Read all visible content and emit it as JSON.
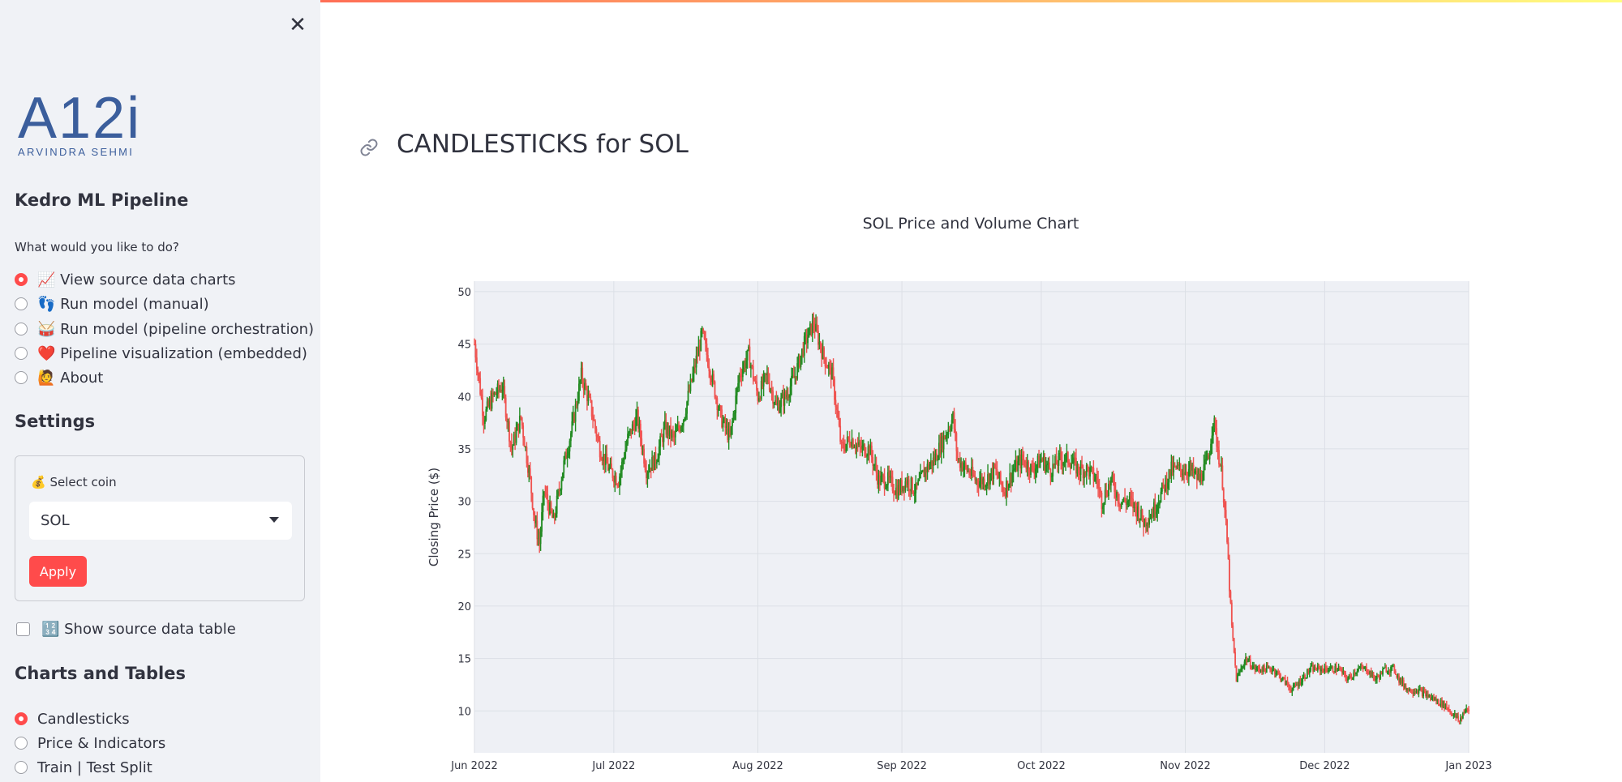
{
  "sidebar": {
    "close_icon_glyph": "✕",
    "logo": {
      "mark": "A12i",
      "subtitle": "ARVINDRA SEHMI",
      "color": "#3b5e9c"
    },
    "app_title": "Kedro ML Pipeline",
    "question": "What would you like to do?",
    "actions": [
      {
        "label": "📈 View source data charts",
        "selected": true
      },
      {
        "label": "👣 Run model (manual)",
        "selected": false
      },
      {
        "label": "🥁 Run model (pipeline orchestration)",
        "selected": false
      },
      {
        "label": "❤️ Pipeline visualization (embedded)",
        "selected": false
      },
      {
        "label": "🙋 About",
        "selected": false
      }
    ],
    "settings_title": "Settings",
    "coin_label": "💰 Select coin",
    "coin_value": "SOL",
    "apply_label": "Apply",
    "show_table_label": "🔢 Show source data table",
    "charts_title": "Charts and Tables",
    "chart_options": [
      {
        "label": "Candlesticks",
        "selected": true
      },
      {
        "label": "Price & Indicators",
        "selected": false
      },
      {
        "label": "Train | Test Split",
        "selected": false
      }
    ]
  },
  "main": {
    "title": "CANDLESTICKS for SOL"
  },
  "colors": {
    "accent": "#ff4b4b",
    "up": "#228b22",
    "down": "#ef5350",
    "plot_bg": "#eef0f5"
  },
  "chart_data": {
    "type": "candlestick",
    "title": "SOL Price and Volume Chart",
    "ylabel": "Closing Price ($)",
    "xlabel": "",
    "ylim": [
      6,
      51
    ],
    "yticks": [
      10,
      15,
      20,
      25,
      30,
      35,
      40,
      45,
      50
    ],
    "xticks": [
      {
        "label": "Jun 2022",
        "day": 0
      },
      {
        "label": "Jul 2022",
        "day": 30
      },
      {
        "label": "Aug 2022",
        "day": 61
      },
      {
        "label": "Sep 2022",
        "day": 92
      },
      {
        "label": "Oct 2022",
        "day": 122
      },
      {
        "label": "Nov 2022",
        "day": 153
      },
      {
        "label": "Dec 2022",
        "day": 183
      },
      {
        "label": "Jan 2023",
        "day": 214
      }
    ],
    "x_range": [
      0,
      214
    ],
    "grid": true,
    "close_by_day": [
      [
        0,
        45
      ],
      [
        2,
        38
      ],
      [
        4,
        40
      ],
      [
        6,
        41
      ],
      [
        8,
        35
      ],
      [
        10,
        38
      ],
      [
        12,
        32
      ],
      [
        13,
        28
      ],
      [
        14,
        26
      ],
      [
        15,
        31
      ],
      [
        17,
        28
      ],
      [
        19,
        33
      ],
      [
        21,
        37
      ],
      [
        23,
        42
      ],
      [
        25,
        39
      ],
      [
        27,
        35
      ],
      [
        29,
        33
      ],
      [
        31,
        32
      ],
      [
        33,
        36
      ],
      [
        35,
        38
      ],
      [
        37,
        33
      ],
      [
        39,
        34
      ],
      [
        41,
        37
      ],
      [
        43,
        36
      ],
      [
        45,
        38
      ],
      [
        47,
        42
      ],
      [
        49,
        46
      ],
      [
        51,
        42
      ],
      [
        53,
        38
      ],
      [
        55,
        36
      ],
      [
        57,
        42
      ],
      [
        59,
        44
      ],
      [
        61,
        40
      ],
      [
        63,
        42
      ],
      [
        65,
        39
      ],
      [
        67,
        40
      ],
      [
        69,
        42
      ],
      [
        71,
        45
      ],
      [
        73,
        47
      ],
      [
        75,
        44
      ],
      [
        77,
        42
      ],
      [
        79,
        35
      ],
      [
        81,
        36
      ],
      [
        83,
        35
      ],
      [
        85,
        35
      ],
      [
        87,
        32
      ],
      [
        89,
        32
      ],
      [
        91,
        31
      ],
      [
        93,
        32
      ],
      [
        95,
        31
      ],
      [
        97,
        33
      ],
      [
        99,
        34
      ],
      [
        101,
        36
      ],
      [
        103,
        38
      ],
      [
        104,
        34
      ],
      [
        106,
        33
      ],
      [
        108,
        32
      ],
      [
        110,
        32
      ],
      [
        112,
        33
      ],
      [
        114,
        31
      ],
      [
        116,
        33
      ],
      [
        118,
        34
      ],
      [
        120,
        33
      ],
      [
        122,
        34
      ],
      [
        124,
        33
      ],
      [
        126,
        34
      ],
      [
        128,
        34
      ],
      [
        130,
        33
      ],
      [
        132,
        33
      ],
      [
        134,
        32
      ],
      [
        135,
        30
      ],
      [
        137,
        32
      ],
      [
        139,
        30
      ],
      [
        141,
        30
      ],
      [
        143,
        29
      ],
      [
        144,
        28
      ],
      [
        146,
        29
      ],
      [
        148,
        31
      ],
      [
        150,
        33
      ],
      [
        152,
        33
      ],
      [
        154,
        33
      ],
      [
        156,
        32
      ],
      [
        158,
        34
      ],
      [
        159,
        38
      ],
      [
        160,
        35
      ],
      [
        161,
        32
      ],
      [
        162,
        26
      ],
      [
        163,
        18
      ],
      [
        164,
        13
      ],
      [
        166,
        15
      ],
      [
        168,
        14
      ],
      [
        170,
        14
      ],
      [
        172,
        14
      ],
      [
        174,
        13
      ],
      [
        176,
        12
      ],
      [
        178,
        13
      ],
      [
        180,
        14
      ],
      [
        182,
        14
      ],
      [
        184,
        14
      ],
      [
        186,
        14
      ],
      [
        188,
        13
      ],
      [
        190,
        14
      ],
      [
        192,
        14
      ],
      [
        194,
        13
      ],
      [
        196,
        14
      ],
      [
        198,
        14
      ],
      [
        199,
        13
      ],
      [
        201,
        12
      ],
      [
        203,
        12
      ],
      [
        205,
        11.5
      ],
      [
        207,
        11
      ],
      [
        209,
        10.5
      ],
      [
        211,
        9.5
      ],
      [
        212,
        9
      ],
      [
        213,
        10
      ],
      [
        214,
        10
      ]
    ]
  }
}
